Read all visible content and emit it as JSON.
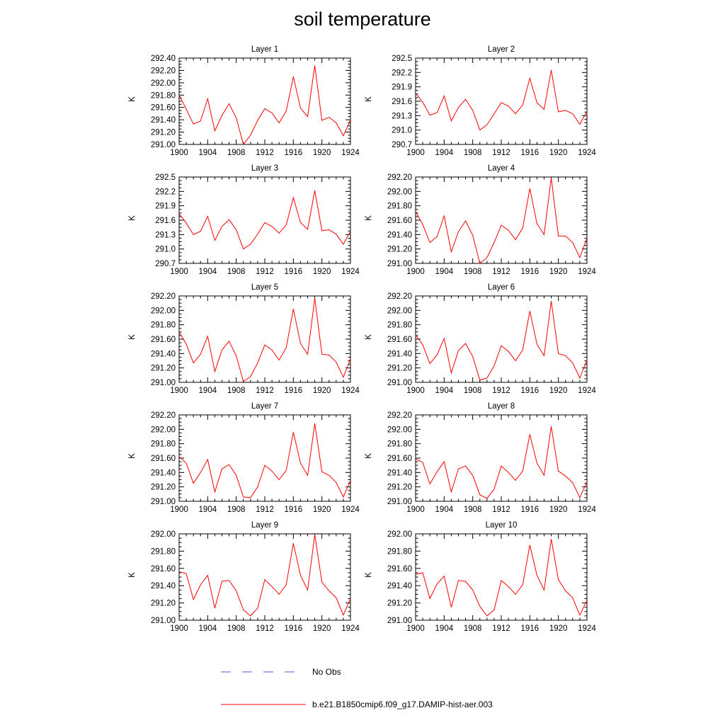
{
  "title": "soil temperature",
  "legend": {
    "items": [
      {
        "label": "No Obs",
        "color": "#5a5ad8",
        "style": "dashed"
      },
      {
        "label": "b.e21.B1850cmip6.f09_g17.DAMIP-hist-aer.003",
        "color": "#ff0000",
        "style": "solid"
      }
    ]
  },
  "chart_data": [
    {
      "type": "line",
      "title": "Layer 1",
      "ylabel": "K",
      "xlim": [
        1900,
        1924
      ],
      "ylim": [
        291.0,
        292.4
      ],
      "xticks": [
        1900,
        1904,
        1908,
        1912,
        1916,
        1920,
        1924
      ],
      "yticks": [
        "291.00",
        "291.20",
        "291.40",
        "291.60",
        "291.80",
        "292.00",
        "292.20",
        "292.40"
      ],
      "color": "#ff0000",
      "x": [
        1900,
        1901,
        1902,
        1903,
        1904,
        1905,
        1906,
        1907,
        1908,
        1909,
        1910,
        1911,
        1912,
        1913,
        1914,
        1915,
        1916,
        1917,
        1918,
        1919,
        1920,
        1921,
        1922,
        1923,
        1924
      ],
      "y": [
        291.8,
        291.57,
        291.33,
        291.38,
        291.74,
        291.22,
        291.47,
        291.66,
        291.43,
        291.0,
        291.15,
        291.39,
        291.58,
        291.51,
        291.35,
        291.54,
        292.1,
        291.59,
        291.45,
        292.28,
        291.39,
        291.44,
        291.35,
        291.14,
        291.4
      ]
    },
    {
      "type": "line",
      "title": "Layer 2",
      "ylabel": "K",
      "xlim": [
        1900,
        1924
      ],
      "ylim": [
        290.7,
        292.5
      ],
      "xticks": [
        1900,
        1904,
        1908,
        1912,
        1916,
        1920,
        1924
      ],
      "yticks": [
        "290.7",
        "291.0",
        "291.3",
        "291.6",
        "291.9",
        "292.2",
        "292.5"
      ],
      "color": "#ff0000",
      "x": [
        1900,
        1901,
        1902,
        1903,
        1904,
        1905,
        1906,
        1907,
        1908,
        1909,
        1910,
        1911,
        1912,
        1913,
        1914,
        1915,
        1916,
        1917,
        1918,
        1919,
        1920,
        1921,
        1922,
        1923,
        1924
      ],
      "y": [
        291.77,
        291.58,
        291.31,
        291.36,
        291.71,
        291.19,
        291.47,
        291.64,
        291.41,
        291.0,
        291.11,
        291.34,
        291.57,
        291.5,
        291.34,
        291.52,
        292.08,
        291.57,
        291.43,
        292.25,
        291.38,
        291.41,
        291.34,
        291.12,
        291.39
      ]
    },
    {
      "type": "line",
      "title": "Layer 3",
      "ylabel": "K",
      "xlim": [
        1900,
        1924
      ],
      "ylim": [
        290.7,
        292.5
      ],
      "xticks": [
        1900,
        1904,
        1908,
        1912,
        1916,
        1920,
        1924
      ],
      "yticks": [
        "290.7",
        "291.0",
        "291.3",
        "291.6",
        "291.9",
        "292.2",
        "292.5"
      ],
      "color": "#ff0000",
      "x": [
        1900,
        1901,
        1902,
        1903,
        1904,
        1905,
        1906,
        1907,
        1908,
        1909,
        1910,
        1911,
        1912,
        1913,
        1914,
        1915,
        1916,
        1917,
        1918,
        1919,
        1920,
        1921,
        1922,
        1923,
        1924
      ],
      "y": [
        291.74,
        291.54,
        291.3,
        291.37,
        291.68,
        291.18,
        291.47,
        291.61,
        291.4,
        291.0,
        291.1,
        291.31,
        291.55,
        291.47,
        291.33,
        291.5,
        292.07,
        291.55,
        291.41,
        292.22,
        291.38,
        291.4,
        291.31,
        291.1,
        291.37
      ]
    },
    {
      "type": "line",
      "title": "Layer 4",
      "ylabel": "K",
      "xlim": [
        1900,
        1924
      ],
      "ylim": [
        291.0,
        292.2
      ],
      "xticks": [
        1900,
        1904,
        1908,
        1912,
        1916,
        1920,
        1924
      ],
      "yticks": [
        "291.00",
        "291.20",
        "291.40",
        "291.60",
        "291.80",
        "292.00",
        "292.20"
      ],
      "color": "#ff0000",
      "x": [
        1900,
        1901,
        1902,
        1903,
        1904,
        1905,
        1906,
        1907,
        1908,
        1909,
        1910,
        1911,
        1912,
        1913,
        1914,
        1915,
        1916,
        1917,
        1918,
        1919,
        1920,
        1921,
        1922,
        1923,
        1924
      ],
      "y": [
        291.72,
        291.54,
        291.29,
        291.37,
        291.66,
        291.16,
        291.44,
        291.59,
        291.39,
        291.0,
        291.08,
        291.29,
        291.53,
        291.46,
        291.33,
        291.49,
        292.04,
        291.55,
        291.4,
        292.19,
        291.38,
        291.38,
        291.29,
        291.08,
        291.35
      ]
    },
    {
      "type": "line",
      "title": "Layer 5",
      "ylabel": "K",
      "xlim": [
        1900,
        1924
      ],
      "ylim": [
        291.0,
        292.2
      ],
      "xticks": [
        1900,
        1904,
        1908,
        1912,
        1916,
        1920,
        1924
      ],
      "yticks": [
        "291.00",
        "291.20",
        "291.40",
        "291.60",
        "291.80",
        "292.00",
        "292.20"
      ],
      "color": "#ff0000",
      "x": [
        1900,
        1901,
        1902,
        1903,
        1904,
        1905,
        1906,
        1907,
        1908,
        1909,
        1910,
        1911,
        1912,
        1913,
        1914,
        1915,
        1916,
        1917,
        1918,
        1919,
        1920,
        1921,
        1922,
        1923,
        1924
      ],
      "y": [
        291.7,
        291.53,
        291.27,
        291.39,
        291.64,
        291.15,
        291.45,
        291.57,
        291.37,
        291.01,
        291.08,
        291.27,
        291.52,
        291.45,
        291.31,
        291.48,
        292.02,
        291.54,
        291.39,
        292.17,
        291.39,
        291.38,
        291.28,
        291.07,
        291.33
      ]
    },
    {
      "type": "line",
      "title": "Layer 6",
      "ylabel": "K",
      "xlim": [
        1900,
        1924
      ],
      "ylim": [
        291.0,
        292.2
      ],
      "xticks": [
        1900,
        1904,
        1908,
        1912,
        1916,
        1920,
        1924
      ],
      "yticks": [
        "291.00",
        "291.20",
        "291.40",
        "291.60",
        "291.80",
        "292.00",
        "292.20"
      ],
      "color": "#ff0000",
      "x": [
        1900,
        1901,
        1902,
        1903,
        1904,
        1905,
        1906,
        1907,
        1908,
        1909,
        1910,
        1911,
        1912,
        1913,
        1914,
        1915,
        1916,
        1917,
        1918,
        1919,
        1920,
        1921,
        1922,
        1923,
        1924
      ],
      "y": [
        291.66,
        291.52,
        291.26,
        291.38,
        291.61,
        291.13,
        291.44,
        291.54,
        291.36,
        291.03,
        291.06,
        291.23,
        291.51,
        291.43,
        291.3,
        291.45,
        291.99,
        291.53,
        291.37,
        292.13,
        291.4,
        291.37,
        291.27,
        291.06,
        291.31
      ]
    },
    {
      "type": "line",
      "title": "Layer 7",
      "ylabel": "K",
      "xlim": [
        1900,
        1924
      ],
      "ylim": [
        291.0,
        292.2
      ],
      "xticks": [
        1900,
        1904,
        1908,
        1912,
        1916,
        1920,
        1924
      ],
      "yticks": [
        "291.00",
        "291.20",
        "291.40",
        "291.60",
        "291.80",
        "292.00",
        "292.20"
      ],
      "color": "#ff0000",
      "x": [
        1900,
        1901,
        1902,
        1903,
        1904,
        1905,
        1906,
        1907,
        1908,
        1909,
        1910,
        1911,
        1912,
        1913,
        1914,
        1915,
        1916,
        1917,
        1918,
        1919,
        1920,
        1921,
        1922,
        1923,
        1924
      ],
      "y": [
        291.62,
        291.53,
        291.25,
        291.4,
        291.58,
        291.13,
        291.45,
        291.51,
        291.36,
        291.06,
        291.05,
        291.2,
        291.5,
        291.42,
        291.3,
        291.43,
        291.96,
        291.53,
        291.36,
        292.08,
        291.41,
        291.36,
        291.26,
        291.06,
        291.29
      ]
    },
    {
      "type": "line",
      "title": "Layer 8",
      "ylabel": "K",
      "xlim": [
        1900,
        1924
      ],
      "ylim": [
        291.0,
        292.2
      ],
      "xticks": [
        1900,
        1904,
        1908,
        1912,
        1916,
        1920,
        1924
      ],
      "yticks": [
        "291.00",
        "291.20",
        "291.40",
        "291.60",
        "291.80",
        "292.00",
        "292.20"
      ],
      "color": "#ff0000",
      "x": [
        1900,
        1901,
        1902,
        1903,
        1904,
        1905,
        1906,
        1907,
        1908,
        1909,
        1910,
        1911,
        1912,
        1913,
        1914,
        1915,
        1916,
        1917,
        1918,
        1919,
        1920,
        1921,
        1922,
        1923,
        1924
      ],
      "y": [
        291.59,
        291.54,
        291.24,
        291.41,
        291.55,
        291.13,
        291.45,
        291.49,
        291.36,
        291.09,
        291.04,
        291.17,
        291.49,
        291.4,
        291.29,
        291.42,
        291.93,
        291.53,
        291.36,
        292.04,
        291.42,
        291.35,
        291.26,
        291.05,
        291.27
      ]
    },
    {
      "type": "line",
      "title": "Layer 9",
      "ylabel": "K",
      "xlim": [
        1900,
        1924
      ],
      "ylim": [
        291.0,
        292.0
      ],
      "xticks": [
        1900,
        1904,
        1908,
        1912,
        1916,
        1920,
        1924
      ],
      "yticks": [
        "291.00",
        "291.20",
        "291.40",
        "291.60",
        "291.80",
        "292.00"
      ],
      "color": "#ff0000",
      "x": [
        1900,
        1901,
        1902,
        1903,
        1904,
        1905,
        1906,
        1907,
        1908,
        1909,
        1910,
        1911,
        1912,
        1913,
        1914,
        1915,
        1916,
        1917,
        1918,
        1919,
        1920,
        1921,
        1922,
        1923,
        1924
      ],
      "y": [
        291.56,
        291.54,
        291.24,
        291.41,
        291.52,
        291.14,
        291.45,
        291.46,
        291.34,
        291.12,
        291.05,
        291.14,
        291.47,
        291.39,
        291.3,
        291.41,
        291.89,
        291.52,
        291.35,
        291.99,
        291.44,
        291.34,
        291.26,
        291.06,
        291.25
      ]
    },
    {
      "type": "line",
      "title": "Layer 10",
      "ylabel": "K",
      "xlim": [
        1900,
        1924
      ],
      "ylim": [
        291.0,
        292.0
      ],
      "xticks": [
        1900,
        1904,
        1908,
        1912,
        1916,
        1920,
        1924
      ],
      "yticks": [
        "291.00",
        "291.20",
        "291.40",
        "291.60",
        "291.80",
        "292.00"
      ],
      "color": "#ff0000",
      "x": [
        1900,
        1901,
        1902,
        1903,
        1904,
        1905,
        1906,
        1907,
        1908,
        1909,
        1910,
        1911,
        1912,
        1913,
        1914,
        1915,
        1916,
        1917,
        1918,
        1919,
        1920,
        1921,
        1922,
        1923,
        1924
      ],
      "y": [
        291.53,
        291.55,
        291.25,
        291.42,
        291.51,
        291.15,
        291.46,
        291.45,
        291.35,
        291.16,
        291.05,
        291.12,
        291.46,
        291.39,
        291.3,
        291.41,
        291.87,
        291.52,
        291.35,
        291.94,
        291.47,
        291.34,
        291.26,
        291.06,
        291.23
      ]
    }
  ]
}
